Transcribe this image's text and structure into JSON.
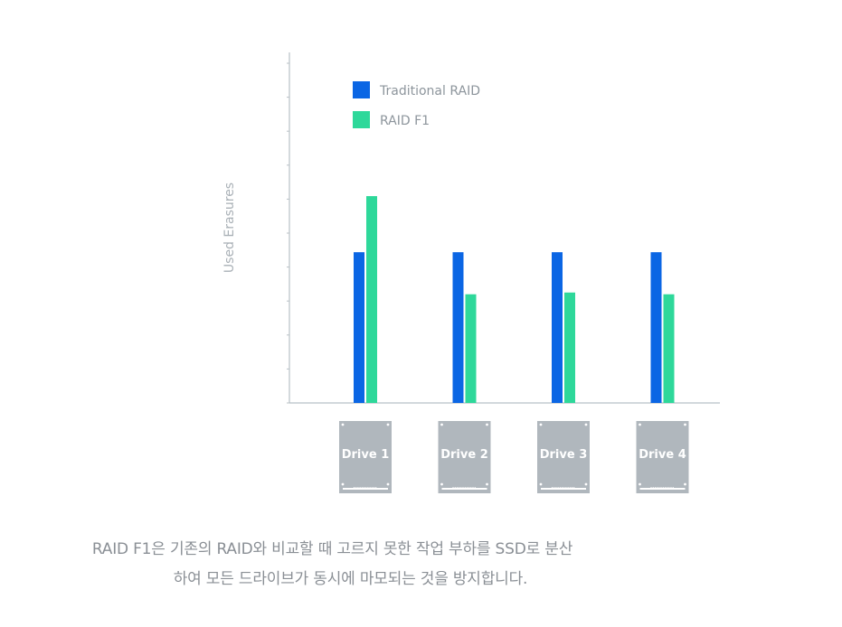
{
  "chart_data": {
    "type": "bar",
    "title": "",
    "xlabel": "",
    "ylabel": "Used Erasures",
    "ylim": [
      0,
      10
    ],
    "grid": false,
    "legend_position": "top-left",
    "categories": [
      "Drive 1",
      "Drive 2",
      "Drive 3",
      "Drive 4"
    ],
    "series": [
      {
        "name": "Traditional RAID",
        "color": "#0b66e4",
        "values": [
          4.3,
          4.3,
          4.3,
          4.3
        ]
      },
      {
        "name": "RAID F1",
        "color": "#2ed89a",
        "values": [
          5.9,
          3.1,
          3.15,
          3.1
        ]
      }
    ],
    "drive_icon_color": "#b0b7bd",
    "axis_color": "#b8c0c6"
  },
  "caption": {
    "line1": "RAID F1은 기존의 RAID와 비교할 때 고르지 못한 작업 부하를 SSD로 분산",
    "line2": "하여 모든 드라이브가 동시에 마모되는 것을 방지합니다."
  }
}
